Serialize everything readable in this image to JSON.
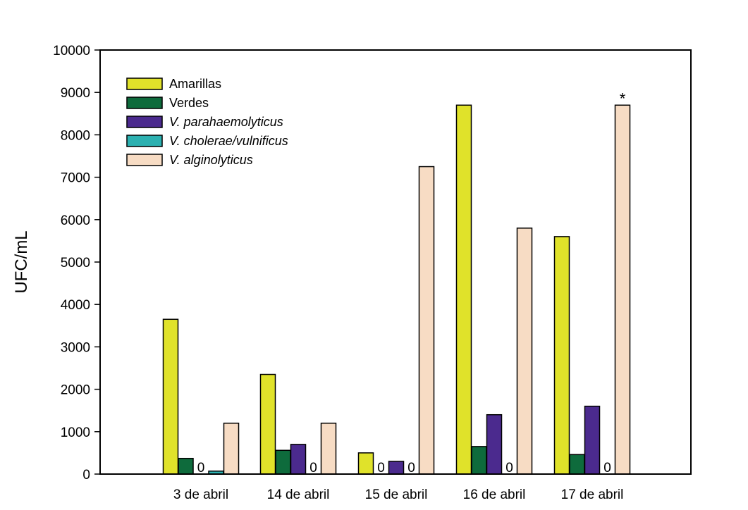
{
  "chart_data": {
    "type": "bar",
    "title": "",
    "xlabel": "",
    "ylabel": "UFC/mL",
    "ylim": [
      0,
      10000
    ],
    "yticks": [
      0,
      1000,
      2000,
      3000,
      4000,
      5000,
      6000,
      7000,
      8000,
      9000,
      10000
    ],
    "grid": false,
    "legend_position": "top-left",
    "categories": [
      "3 de abril",
      "14 de abril",
      "15 de abril",
      "16 de abril",
      "17 de abril"
    ],
    "series": [
      {
        "name": "Amarillas",
        "italic": false,
        "color": "#e0e22a",
        "values": [
          3650,
          2350,
          500,
          8700,
          5600
        ]
      },
      {
        "name": "Verdes",
        "italic": false,
        "color": "#0e6b3c",
        "values": [
          370,
          560,
          0,
          650,
          460
        ]
      },
      {
        "name": "V. parahaemolyticus",
        "italic": true,
        "color": "#4b2a8e",
        "values": [
          0,
          700,
          300,
          1400,
          1600
        ]
      },
      {
        "name": "V. cholerae/vulnificus",
        "italic": true,
        "color": "#2cb1b1",
        "values": [
          70,
          0,
          0,
          0,
          0
        ]
      },
      {
        "name": "V. alginolyticus",
        "italic": true,
        "color": "#f7dcc4",
        "values": [
          1200,
          1200,
          7250,
          5800,
          8700
        ]
      }
    ],
    "annotations": [
      {
        "category": "3 de abril",
        "series": "V. parahaemolyticus",
        "text": "0"
      },
      {
        "category": "14 de abril",
        "series": "V. cholerae/vulnificus",
        "text": "0"
      },
      {
        "category": "15 de abril",
        "series": "Verdes",
        "text": "0"
      },
      {
        "category": "15 de abril",
        "series": "V. cholerae/vulnificus",
        "text": "0"
      },
      {
        "category": "16 de abril",
        "series": "V. cholerae/vulnificus",
        "text": "0"
      },
      {
        "category": "17 de abril",
        "series": "V. cholerae/vulnificus",
        "text": "0"
      },
      {
        "category": "17 de abril",
        "series": "V. alginolyticus",
        "text": "*"
      }
    ]
  }
}
